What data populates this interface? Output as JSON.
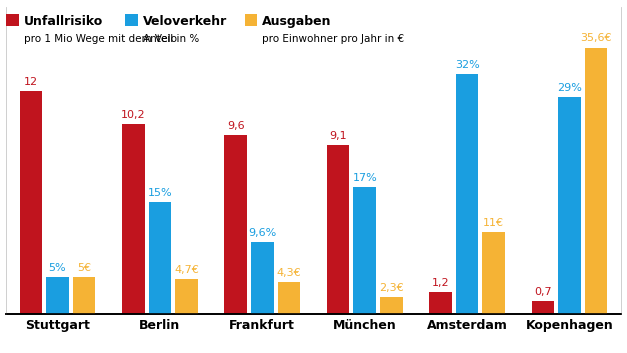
{
  "chart_data": {
    "type": "bar",
    "categories": [
      "Stuttgart",
      "Berlin",
      "Frankfurt",
      "München",
      "Amsterdam",
      "Kopenhagen"
    ],
    "series": [
      {
        "name": "Unfallrisiko",
        "unit": "pro 1 Mio Wege mit dem Velo",
        "color": "#c0141e",
        "values": [
          12,
          10.2,
          9.6,
          9.1,
          1.2,
          0.7
        ],
        "value_labels": [
          "12",
          "10,2",
          "9,6",
          "9,1",
          "1,2",
          "0,7"
        ]
      },
      {
        "name": "Veloverkehr",
        "unit": "Anteil in %",
        "color": "#1a9ee0",
        "axis": "y2",
        "values": [
          5,
          15,
          9.6,
          17,
          32,
          29
        ],
        "value_labels": [
          "5%",
          "15%",
          "9,6%",
          "17%",
          "32%",
          "29%"
        ]
      },
      {
        "name": "Ausgaben",
        "unit": "pro Einwohner pro Jahr in €",
        "color": "#f5b335",
        "axis": "y2",
        "values": [
          5,
          4.7,
          4.3,
          2.3,
          11,
          35.6
        ],
        "value_labels": [
          "5€",
          "4,7€",
          "4,3€",
          "2,3€",
          "11€",
          "35,6€"
        ]
      }
    ],
    "ylim": [
      0,
      16.5
    ],
    "yticks": [
      0
    ],
    "y2lim": [
      0,
      41
    ],
    "y2ticks": [
      0
    ],
    "data_labels": true,
    "tick_labels": "x",
    "grid": false
  }
}
